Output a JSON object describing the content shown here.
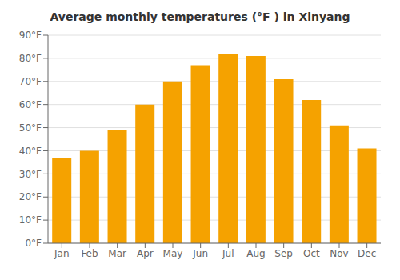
{
  "chart_data": {
    "type": "bar",
    "title": "Average monthly temperatures (°F ) in Xinyang",
    "categories": [
      "Jan",
      "Feb",
      "Mar",
      "Apr",
      "May",
      "Jun",
      "Jul",
      "Aug",
      "Sep",
      "Oct",
      "Nov",
      "Dec"
    ],
    "values": [
      37,
      40,
      49,
      60,
      70,
      77,
      82,
      81,
      71,
      62,
      51,
      41
    ],
    "color": "#F5A200",
    "ylim": [
      0,
      90
    ],
    "yticks": [
      {
        "value": 0,
        "label": "0°F"
      },
      {
        "value": 10,
        "label": "10°F"
      },
      {
        "value": 20,
        "label": "20°F"
      },
      {
        "value": 30,
        "label": "30°F"
      },
      {
        "value": 40,
        "label": "40°F"
      },
      {
        "value": 50,
        "label": "50°F"
      },
      {
        "value": 60,
        "label": "60°F"
      },
      {
        "value": 70,
        "label": "70°F"
      },
      {
        "value": 80,
        "label": "80°F"
      },
      {
        "value": 90,
        "label": "90°F"
      }
    ],
    "grid": true
  }
}
